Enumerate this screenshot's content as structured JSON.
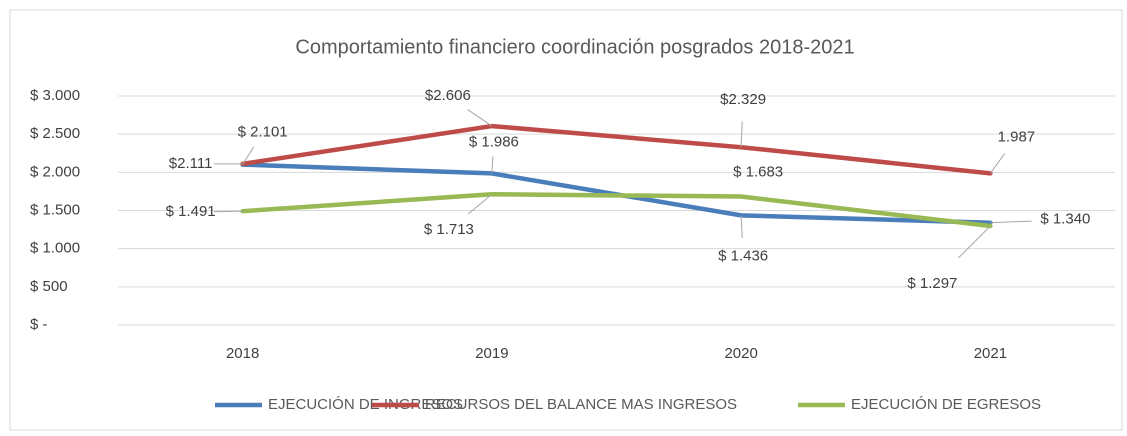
{
  "chart_data": {
    "type": "line",
    "title": "Comportamiento financiero coordinación posgrados  2018-2021",
    "categories": [
      "2018",
      "2019",
      "2020",
      "2021"
    ],
    "series": [
      {
        "name": "EJECUCIÓN DE INGRESOS",
        "color": "#4a7ebb",
        "values": [
          2101,
          1986,
          1436,
          1340
        ],
        "value_labels": [
          "$ 2.101",
          "$ 1.986",
          "$ 1.436",
          "$ 1.340"
        ]
      },
      {
        "name": "RECURSOS DEL BALANCE MAS INGRESOS",
        "color": "#be4b48",
        "values": [
          2111,
          2606,
          2329,
          1987
        ],
        "value_labels": [
          "$2.111",
          "$2.606",
          "$2.329",
          "1.987"
        ]
      },
      {
        "name": "EJECUCIÓN DE EGRESOS",
        "color": "#98b954",
        "values": [
          1491,
          1713,
          1683,
          1297
        ],
        "value_labels": [
          "$ 1.491",
          "$ 1.713",
          "$ 1.683",
          "$ 1.297"
        ]
      }
    ],
    "ylim": [
      0,
      3000
    ],
    "yticks": [
      {
        "value": 0,
        "label": "$ -"
      },
      {
        "value": 500,
        "label": "$ 500"
      },
      {
        "value": 1000,
        "label": "$ 1.000"
      },
      {
        "value": 1500,
        "label": "$ 1.500"
      },
      {
        "value": 2000,
        "label": "$ 2.000"
      },
      {
        "value": 2500,
        "label": "$ 2.500"
      },
      {
        "value": 3000,
        "label": "$ 3.000"
      }
    ],
    "grid": true,
    "legend": "bottom"
  }
}
